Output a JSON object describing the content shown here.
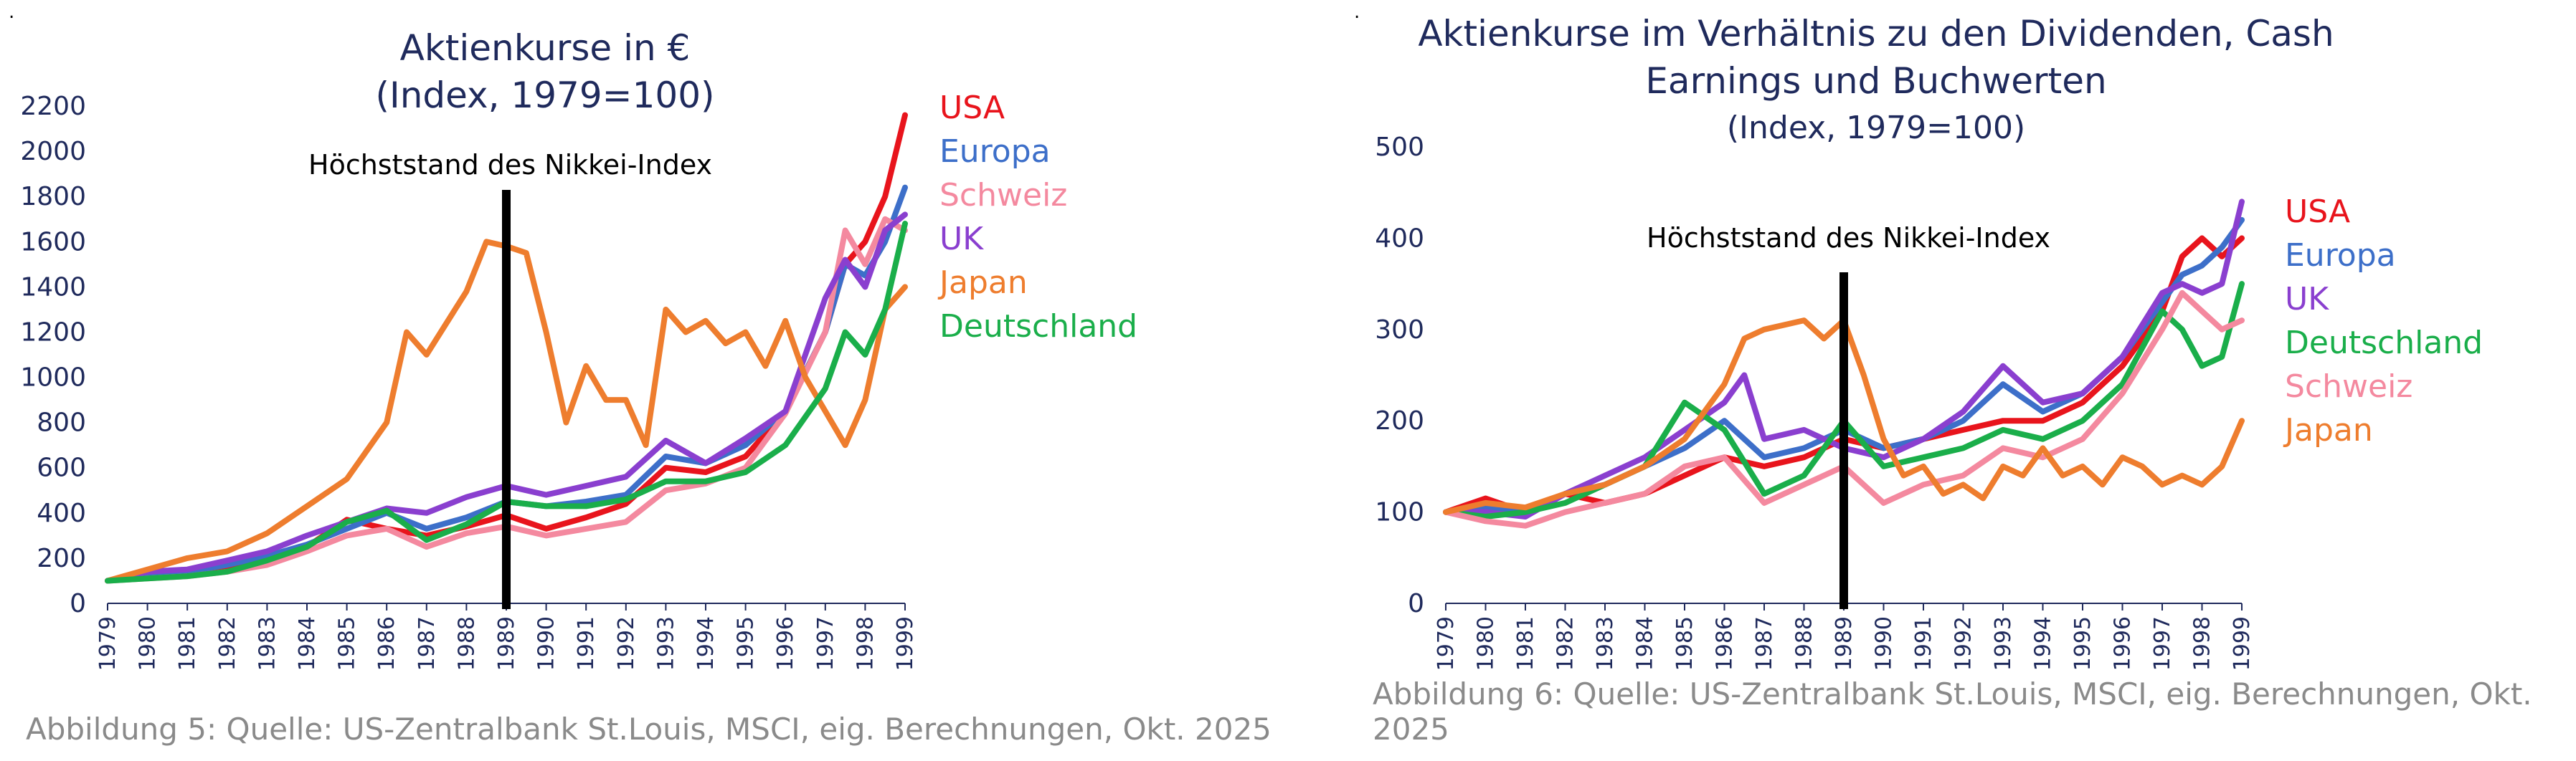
{
  "colors": {
    "USA": "#e8141c",
    "Europa": "#3d6fc9",
    "Schweiz": "#f4899f",
    "UK": "#8a3fcf",
    "Japan": "#ee7d2e",
    "Deutschland": "#1aae4a",
    "axis": "#1f2a5c",
    "caption": "#8a8a8a",
    "marker": "#000000"
  },
  "panels": [
    {
      "dot": ".",
      "title_line1": "Aktienkurse in €",
      "title_line2": "(Index, 1979=100)",
      "title_line3": "",
      "caption": "Abbildung 5: Quelle: US-Zentralbank St.Louis, MSCI, eig. Berechnungen, Okt. 2025"
    },
    {
      "dot": ".",
      "title_line1": "Aktienkurse im Verhältnis zu den Dividenden, Cash",
      "title_line2": "Earnings und Buchwerten",
      "title_line3": "(Index, 1979=100)",
      "caption": "Abbildung 6: Quelle: US-Zentralbank St.Louis, MSCI, eig. Berechnungen, Okt. 2025"
    }
  ],
  "chart_data": [
    {
      "type": "line",
      "title": "Aktienkurse in €",
      "subtitle": "(Index, 1979=100)",
      "xlabel": "",
      "ylabel": "",
      "x_ticks": [
        "1979",
        "1980",
        "1981",
        "1982",
        "1983",
        "1984",
        "1985",
        "1986",
        "1987",
        "1988",
        "1989",
        "1990",
        "1991",
        "1992",
        "1993",
        "1994",
        "1995",
        "1996",
        "1997",
        "1998",
        "1999"
      ],
      "xlim": [
        1979,
        1999
      ],
      "ylim": [
        0,
        2200
      ],
      "y_ticks": [
        0,
        200,
        400,
        600,
        800,
        1000,
        1200,
        1400,
        1600,
        1800,
        2000,
        2200
      ],
      "grid": false,
      "legend": "right",
      "annotation": {
        "text": "Höchststand des Nikkei-Index",
        "x": 1989
      },
      "series": [
        {
          "name": "USA",
          "x": [
            1979,
            1980,
            1981,
            1982,
            1983,
            1984,
            1985,
            1986,
            1987,
            1988,
            1989,
            1989.5,
            1990,
            1991,
            1992,
            1993,
            1994,
            1995,
            1996,
            1997,
            1997.5,
            1998,
            1998.5,
            1999
          ],
          "values": [
            100,
            120,
            130,
            150,
            200,
            250,
            370,
            330,
            300,
            340,
            390,
            360,
            330,
            380,
            440,
            600,
            580,
            650,
            850,
            1200,
            1500,
            1600,
            1800,
            2160
          ]
        },
        {
          "name": "Europa",
          "x": [
            1979,
            1980,
            1981,
            1982,
            1983,
            1984,
            1985,
            1986,
            1987,
            1988,
            1989,
            1990,
            1991,
            1992,
            1993,
            1994,
            1995,
            1996,
            1997,
            1997.5,
            1998,
            1998.5,
            1999
          ],
          "values": [
            100,
            120,
            140,
            170,
            210,
            260,
            330,
            400,
            330,
            380,
            450,
            430,
            450,
            480,
            650,
            620,
            700,
            850,
            1200,
            1500,
            1450,
            1600,
            1840
          ]
        },
        {
          "name": "Schweiz",
          "x": [
            1979,
            1980,
            1981,
            1982,
            1983,
            1984,
            1985,
            1986,
            1987,
            1988,
            1989,
            1990,
            1991,
            1992,
            1993,
            1994,
            1995,
            1996,
            1997,
            1997.5,
            1998,
            1998.5,
            1999
          ],
          "values": [
            100,
            110,
            120,
            140,
            170,
            230,
            300,
            330,
            250,
            310,
            340,
            300,
            330,
            360,
            500,
            530,
            600,
            840,
            1200,
            1650,
            1500,
            1700,
            1650
          ]
        },
        {
          "name": "UK",
          "x": [
            1979,
            1980,
            1981,
            1982,
            1983,
            1984,
            1985,
            1986,
            1987,
            1988,
            1989,
            1990,
            1991,
            1992,
            1993,
            1994,
            1995,
            1996,
            1997,
            1997.5,
            1998,
            1998.5,
            1999
          ],
          "values": [
            100,
            140,
            150,
            190,
            230,
            300,
            360,
            420,
            400,
            470,
            520,
            480,
            520,
            560,
            720,
            620,
            730,
            850,
            1350,
            1520,
            1400,
            1650,
            1720
          ]
        },
        {
          "name": "Japan",
          "x": [
            1979,
            1980,
            1981,
            1982,
            1983,
            1984,
            1985,
            1986,
            1986.5,
            1987,
            1988,
            1988.5,
            1989,
            1989.5,
            1990,
            1990.5,
            1991,
            1991.5,
            1992,
            1992.5,
            1993,
            1993.5,
            1994,
            1994.5,
            1995,
            1995.5,
            1996,
            1996.5,
            1997,
            1997.5,
            1998,
            1998.5,
            1999
          ],
          "values": [
            100,
            150,
            200,
            230,
            310,
            430,
            550,
            800,
            1200,
            1100,
            1380,
            1600,
            1580,
            1550,
            1200,
            800,
            1050,
            900,
            900,
            700,
            1300,
            1200,
            1250,
            1150,
            1200,
            1050,
            1250,
            1000,
            850,
            700,
            900,
            1300,
            1400
          ]
        },
        {
          "name": "Deutschland",
          "x": [
            1979,
            1980,
            1981,
            1982,
            1983,
            1984,
            1985,
            1986,
            1987,
            1988,
            1989,
            1990,
            1991,
            1992,
            1993,
            1994,
            1995,
            1996,
            1997,
            1997.5,
            1998,
            1998.5,
            1999
          ],
          "values": [
            100,
            110,
            120,
            140,
            190,
            250,
            360,
            410,
            280,
            350,
            450,
            430,
            430,
            460,
            540,
            540,
            580,
            700,
            950,
            1200,
            1100,
            1300,
            1680
          ]
        }
      ]
    },
    {
      "type": "line",
      "title": "Aktienkurse im Verhältnis zu den Dividenden, Cash Earnings und Buchwerten",
      "subtitle": "(Index, 1979=100)",
      "xlabel": "",
      "ylabel": "",
      "x_ticks": [
        "1979",
        "1980",
        "1981",
        "1982",
        "1983",
        "1984",
        "1985",
        "1986",
        "1987",
        "1988",
        "1989",
        "1990",
        "1991",
        "1992",
        "1993",
        "1994",
        "1995",
        "1996",
        "1997",
        "1998",
        "1999"
      ],
      "xlim": [
        1979,
        1999
      ],
      "ylim": [
        0,
        500
      ],
      "y_ticks": [
        0,
        100,
        200,
        300,
        400,
        500
      ],
      "grid": false,
      "legend": "right",
      "annotation": {
        "text": "Höchststand des Nikkei-Index",
        "x": 1989
      },
      "series": [
        {
          "name": "USA",
          "x": [
            1979,
            1980,
            1981,
            1982,
            1983,
            1984,
            1985,
            1986,
            1987,
            1988,
            1989,
            1990,
            1991,
            1992,
            1993,
            1994,
            1995,
            1996,
            1997,
            1997.5,
            1998,
            1998.5,
            1999
          ],
          "values": [
            100,
            115,
            100,
            120,
            110,
            120,
            140,
            160,
            150,
            160,
            180,
            170,
            180,
            190,
            200,
            200,
            220,
            260,
            320,
            380,
            400,
            380,
            400
          ]
        },
        {
          "name": "Europa",
          "x": [
            1979,
            1980,
            1981,
            1982,
            1983,
            1984,
            1985,
            1986,
            1987,
            1988,
            1989,
            1990,
            1991,
            1992,
            1993,
            1994,
            1995,
            1996,
            1997,
            1997.5,
            1998,
            1998.5,
            1999
          ],
          "values": [
            100,
            105,
            100,
            120,
            130,
            150,
            170,
            200,
            160,
            170,
            190,
            170,
            180,
            200,
            240,
            210,
            230,
            270,
            330,
            360,
            370,
            390,
            420
          ]
        },
        {
          "name": "UK",
          "x": [
            1979,
            1980,
            1981,
            1982,
            1983,
            1984,
            1985,
            1986,
            1986.5,
            1987,
            1988,
            1989,
            1990,
            1991,
            1992,
            1993,
            1994,
            1995,
            1996,
            1997,
            1997.5,
            1998,
            1998.5,
            1999
          ],
          "values": [
            100,
            100,
            95,
            120,
            140,
            160,
            190,
            220,
            250,
            180,
            190,
            170,
            160,
            180,
            210,
            260,
            220,
            230,
            270,
            340,
            350,
            340,
            350,
            440
          ]
        },
        {
          "name": "Deutschland",
          "x": [
            1979,
            1980,
            1981,
            1982,
            1983,
            1984,
            1985,
            1986,
            1987,
            1988,
            1989,
            1990,
            1991,
            1992,
            1993,
            1994,
            1995,
            1996,
            1997,
            1997.5,
            1998,
            1998.5,
            1999
          ],
          "values": [
            100,
            95,
            100,
            110,
            130,
            150,
            220,
            190,
            120,
            140,
            200,
            150,
            160,
            170,
            190,
            180,
            200,
            240,
            320,
            300,
            260,
            270,
            350
          ]
        },
        {
          "name": "Schweiz",
          "x": [
            1979,
            1980,
            1981,
            1982,
            1983,
            1984,
            1985,
            1986,
            1987,
            1988,
            1989,
            1990,
            1991,
            1992,
            1993,
            1994,
            1995,
            1996,
            1997,
            1997.5,
            1998,
            1998.5,
            1999
          ],
          "values": [
            100,
            90,
            85,
            100,
            110,
            120,
            150,
            160,
            110,
            130,
            150,
            110,
            130,
            140,
            170,
            160,
            180,
            230,
            300,
            340,
            320,
            300,
            310
          ]
        },
        {
          "name": "Japan",
          "x": [
            1979,
            1980,
            1981,
            1982,
            1983,
            1984,
            1985,
            1986,
            1986.5,
            1987,
            1988,
            1988.5,
            1989,
            1989.5,
            1990,
            1990.5,
            1991,
            1991.5,
            1992,
            1992.5,
            1993,
            1993.5,
            1994,
            1994.5,
            1995,
            1995.5,
            1996,
            1996.5,
            1997,
            1997.5,
            1998,
            1998.5,
            1999
          ],
          "values": [
            100,
            110,
            105,
            120,
            130,
            150,
            180,
            240,
            290,
            300,
            310,
            290,
            310,
            250,
            180,
            140,
            150,
            120,
            130,
            115,
            150,
            140,
            170,
            140,
            150,
            130,
            160,
            150,
            130,
            140,
            130,
            150,
            200
          ]
        }
      ]
    }
  ]
}
